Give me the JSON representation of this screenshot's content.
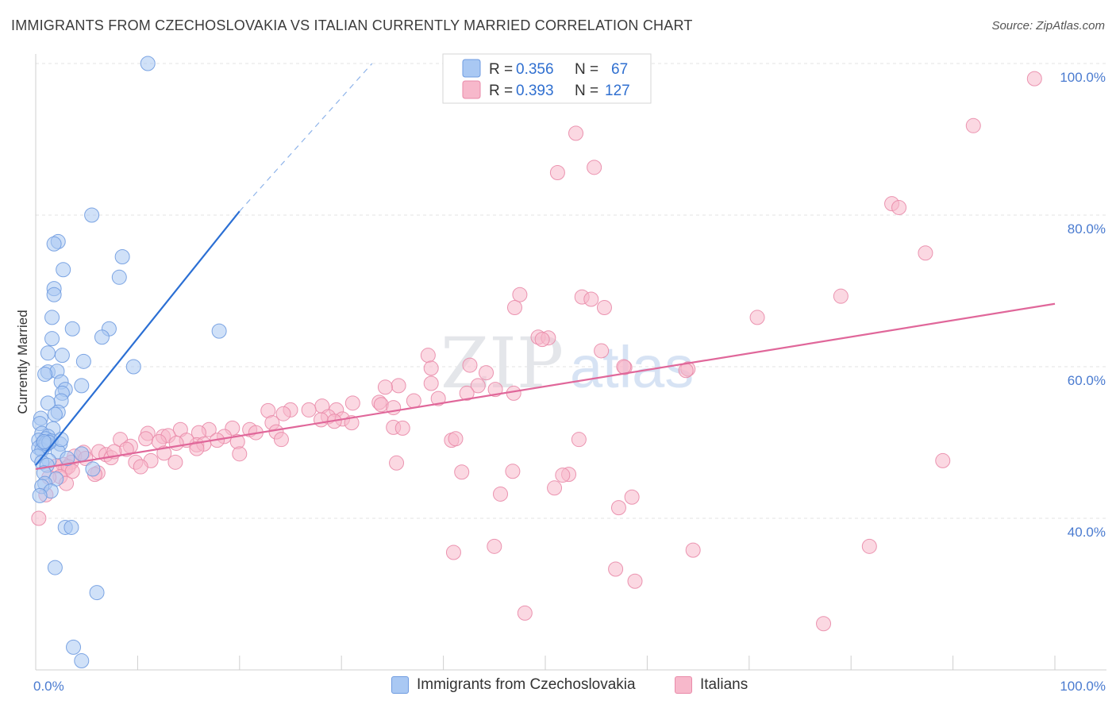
{
  "title": "IMMIGRANTS FROM CZECHOSLOVAKIA VS ITALIAN CURRENTLY MARRIED CORRELATION CHART",
  "source": "Source: ZipAtlas.com",
  "watermark": {
    "part1": "ZIP",
    "part2": "atlas"
  },
  "chart_data": {
    "type": "scatter",
    "ylabel": "Currently Married",
    "xlim": [
      0,
      100
    ],
    "ylim": [
      20,
      100
    ],
    "x_tick_labels": [
      "0.0%",
      "100.0%"
    ],
    "y_tick_labels": [
      {
        "value": 100,
        "label": "100.0%"
      },
      {
        "value": 80,
        "label": "80.0%"
      },
      {
        "value": 60,
        "label": "60.0%"
      },
      {
        "value": 40,
        "label": "40.0%"
      }
    ],
    "legend": [
      {
        "r_label": "R =",
        "r_value": "0.356",
        "n_label": "N =",
        "n_value": "67",
        "color": "#a9c8f3",
        "stroke": "#6f9be0"
      },
      {
        "r_label": "R =",
        "r_value": "0.393",
        "n_label": "N =",
        "n_value": "127",
        "color": "#f7b8cb",
        "stroke": "#e98aa9"
      }
    ],
    "series": [
      {
        "name": "Immigrants from Czechoslovakia",
        "color": "#a9c8f3",
        "stroke": "#6f9be0",
        "trend": {
          "x0": 0,
          "y0": 47,
          "x1": 20,
          "y1": 80.5,
          "dash_to_x": 33,
          "dash_to_y": 100,
          "color": "#2b6fd4"
        },
        "points": [
          [
            11,
            100
          ],
          [
            5.5,
            80
          ],
          [
            2.2,
            76.5
          ],
          [
            1.8,
            76.2
          ],
          [
            8.5,
            74.5
          ],
          [
            2.7,
            72.8
          ],
          [
            8.2,
            71.8
          ],
          [
            1.8,
            70.3
          ],
          [
            1.8,
            69.5
          ],
          [
            1.6,
            66.5
          ],
          [
            3.6,
            65
          ],
          [
            7.2,
            65
          ],
          [
            6.5,
            63.9
          ],
          [
            1.6,
            63.7
          ],
          [
            18,
            64.7
          ],
          [
            1.2,
            61.8
          ],
          [
            2.6,
            61.5
          ],
          [
            4.7,
            60.7
          ],
          [
            9.6,
            60
          ],
          [
            1.2,
            59.3
          ],
          [
            2.1,
            59.4
          ],
          [
            0.9,
            59
          ],
          [
            2.5,
            58
          ],
          [
            4.5,
            57.5
          ],
          [
            2.9,
            57
          ],
          [
            2.6,
            56.5
          ],
          [
            2.5,
            55.5
          ],
          [
            1.2,
            55.2
          ],
          [
            2.2,
            54
          ],
          [
            1.9,
            53.7
          ],
          [
            0.5,
            53.2
          ],
          [
            0.4,
            52.5
          ],
          [
            1.7,
            51.8
          ],
          [
            0.6,
            51.2
          ],
          [
            1.2,
            50.8
          ],
          [
            1.0,
            50.5
          ],
          [
            0.3,
            50.3
          ],
          [
            1.5,
            50.2
          ],
          [
            2.4,
            49.8
          ],
          [
            0.7,
            49.9
          ],
          [
            0.9,
            49.6
          ],
          [
            0.3,
            49.3
          ],
          [
            0.6,
            49.0
          ],
          [
            2.2,
            48.8
          ],
          [
            4.5,
            48.5
          ],
          [
            0.2,
            48.2
          ],
          [
            3.1,
            47.9
          ],
          [
            1.3,
            47.6
          ],
          [
            0.6,
            47.4
          ],
          [
            1.1,
            47.0
          ],
          [
            5.6,
            46.5
          ],
          [
            0.8,
            46.0
          ],
          [
            2.0,
            45.2
          ],
          [
            0.9,
            44.6
          ],
          [
            0.6,
            44.2
          ],
          [
            1.5,
            43.6
          ],
          [
            0.4,
            43.0
          ],
          [
            2.9,
            38.8
          ],
          [
            3.5,
            38.8
          ],
          [
            1.9,
            33.5
          ],
          [
            6.0,
            30.2
          ],
          [
            3.7,
            23.0
          ],
          [
            4.5,
            21.2
          ],
          [
            1.0,
            49.9
          ],
          [
            1.3,
            50.0
          ],
          [
            0.8,
            50.1
          ],
          [
            2.5,
            50.4
          ]
        ]
      },
      {
        "name": "Italians",
        "color": "#f7b8cb",
        "stroke": "#e98aa9",
        "trend": {
          "x0": 0,
          "y0": 46.5,
          "x1": 100,
          "y1": 68.3,
          "color": "#e0679a"
        },
        "points": [
          [
            98,
            98
          ],
          [
            92,
            91.8
          ],
          [
            53,
            90.8
          ],
          [
            54.8,
            86.3
          ],
          [
            51.2,
            85.6
          ],
          [
            84,
            81.5
          ],
          [
            84.7,
            81
          ],
          [
            87.3,
            75
          ],
          [
            47.5,
            69.5
          ],
          [
            53.6,
            69.2
          ],
          [
            54.5,
            68.9
          ],
          [
            55.8,
            67.8
          ],
          [
            47,
            67.8
          ],
          [
            79,
            69.3
          ],
          [
            70.8,
            66.5
          ],
          [
            49.3,
            63.9
          ],
          [
            50.3,
            63.8
          ],
          [
            49.7,
            63.6
          ],
          [
            55.5,
            62.1
          ],
          [
            38.5,
            61.5
          ],
          [
            42.6,
            60.2
          ],
          [
            57.8,
            59.9
          ],
          [
            38.8,
            59.8
          ],
          [
            64,
            59.7
          ],
          [
            44.2,
            59.2
          ],
          [
            35.6,
            57.5
          ],
          [
            38.8,
            57.8
          ],
          [
            43.4,
            57.5
          ],
          [
            34.3,
            57.3
          ],
          [
            45.1,
            57
          ],
          [
            42.3,
            56.5
          ],
          [
            46.9,
            56.5
          ],
          [
            39.5,
            55.8
          ],
          [
            37.1,
            55.5
          ],
          [
            33.7,
            55.3
          ],
          [
            31.1,
            55.2
          ],
          [
            33.9,
            55
          ],
          [
            28.1,
            54.8
          ],
          [
            35.1,
            54.6
          ],
          [
            25.0,
            54.3
          ],
          [
            26.8,
            54.3
          ],
          [
            24.3,
            53.8
          ],
          [
            29.5,
            54.3
          ],
          [
            22.8,
            54.2
          ],
          [
            28.7,
            53.4
          ],
          [
            30.1,
            53.1
          ],
          [
            28.0,
            53.0
          ],
          [
            29.3,
            52.8
          ],
          [
            31.0,
            52.6
          ],
          [
            23.2,
            52.6
          ],
          [
            21.0,
            51.7
          ],
          [
            19.3,
            51.9
          ],
          [
            17.0,
            51.7
          ],
          [
            16.0,
            51.3
          ],
          [
            14.2,
            51.7
          ],
          [
            21.6,
            51.3
          ],
          [
            23.6,
            51.4
          ],
          [
            18.5,
            50.8
          ],
          [
            35.1,
            52.0
          ],
          [
            40.8,
            50.3
          ],
          [
            15.8,
            49.7
          ],
          [
            12.5,
            50.8
          ],
          [
            11.0,
            51.2
          ],
          [
            13.0,
            50.9
          ],
          [
            10.8,
            50.5
          ],
          [
            17.8,
            50.3
          ],
          [
            19.8,
            50.1
          ],
          [
            14.8,
            50.3
          ],
          [
            24.1,
            50.4
          ],
          [
            13.8,
            49.9
          ],
          [
            16.5,
            49.8
          ],
          [
            8.3,
            50.4
          ],
          [
            12.1,
            50.1
          ],
          [
            9.3,
            49.5
          ],
          [
            8.9,
            49.1
          ],
          [
            6.2,
            48.8
          ],
          [
            4.7,
            48.7
          ],
          [
            6.9,
            48.4
          ],
          [
            7.4,
            48.0
          ],
          [
            3.8,
            48.2
          ],
          [
            4.9,
            47.9
          ],
          [
            3.5,
            47.4
          ],
          [
            9.8,
            47.4
          ],
          [
            11.3,
            47.6
          ],
          [
            2.7,
            47.1
          ],
          [
            10.3,
            46.8
          ],
          [
            2.9,
            46.5
          ],
          [
            2.0,
            46.9
          ],
          [
            3.2,
            46.8
          ],
          [
            3.6,
            46.2
          ],
          [
            6.1,
            46.0
          ],
          [
            5.8,
            45.8
          ],
          [
            2.4,
            45.5
          ],
          [
            1.3,
            45.4
          ],
          [
            7.7,
            48.8
          ],
          [
            15.8,
            49.2
          ],
          [
            20.0,
            48.5
          ],
          [
            35.4,
            47.3
          ],
          [
            41.8,
            46.1
          ],
          [
            46.8,
            46.2
          ],
          [
            52.3,
            45.8
          ],
          [
            50.9,
            44.0
          ],
          [
            45.6,
            43.2
          ],
          [
            57.2,
            41.4
          ],
          [
            58.5,
            42.8
          ],
          [
            53.3,
            50.4
          ],
          [
            41.2,
            50.5
          ],
          [
            89,
            47.6
          ],
          [
            1.0,
            43.1
          ],
          [
            0.3,
            40.0
          ],
          [
            41.0,
            35.5
          ],
          [
            45.0,
            36.3
          ],
          [
            64.5,
            35.8
          ],
          [
            81.8,
            36.3
          ],
          [
            56.9,
            33.3
          ],
          [
            58.8,
            31.7
          ],
          [
            48.0,
            27.5
          ],
          [
            77.3,
            26.1
          ],
          [
            51.7,
            45.7
          ],
          [
            3.0,
            44.6
          ],
          [
            13.7,
            47.4
          ],
          [
            36.0,
            51.9
          ],
          [
            12.6,
            48.6
          ],
          [
            63.8,
            59.5
          ],
          [
            57.7,
            60.0
          ]
        ]
      }
    ]
  },
  "bottom_legend": [
    {
      "label": "Immigrants from Czechoslovakia",
      "color": "#a9c8f3",
      "stroke": "#6f9be0"
    },
    {
      "label": "Italians",
      "color": "#f7b8cb",
      "stroke": "#e98aa9"
    }
  ]
}
